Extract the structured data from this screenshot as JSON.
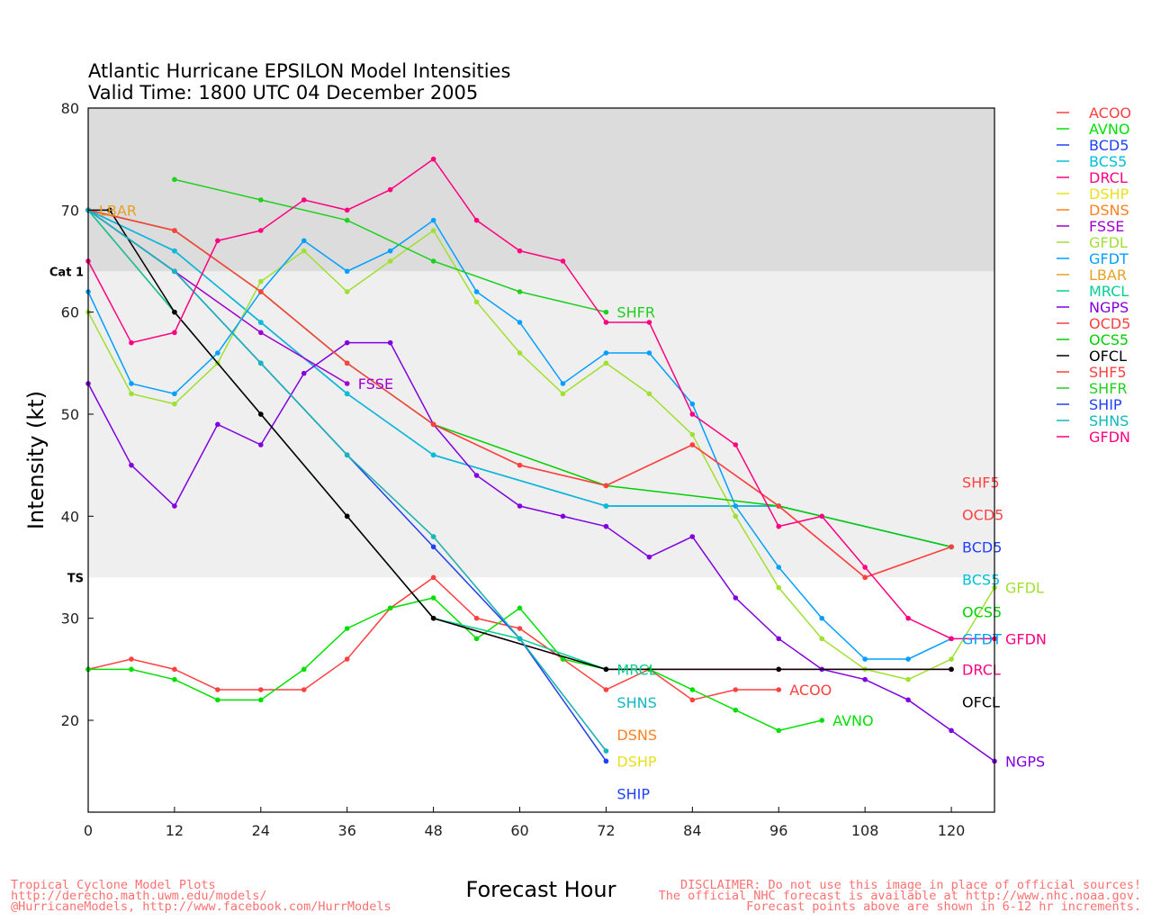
{
  "chart_data": {
    "type": "line",
    "title": "Atlantic Hurricane EPSILON Model Intensities",
    "subtitle": "Valid Time: 1800 UTC 04 December 2005",
    "xlabel": "Forecast Hour",
    "ylabel": "Intensity (kt)",
    "xlim": [
      0,
      126
    ],
    "ylim": [
      11,
      80
    ],
    "xticks": [
      0,
      12,
      24,
      36,
      48,
      60,
      72,
      84,
      96,
      108,
      120
    ],
    "yticks": [
      20,
      30,
      40,
      50,
      60,
      70,
      80
    ],
    "bands": [
      {
        "label": "Cat 1",
        "from": 64,
        "to": 80,
        "color": "#dcdcdc"
      },
      {
        "label": "TS",
        "from": 34,
        "to": 64,
        "color": "#efefef"
      }
    ],
    "legend_position": "right",
    "series": [
      {
        "name": "ACOO",
        "color": "#ff4040",
        "x": [
          0,
          6,
          12,
          18,
          24,
          30,
          36,
          42,
          48,
          54,
          60,
          66,
          72,
          78,
          84,
          90,
          96
        ],
        "y": [
          25,
          26,
          25,
          23,
          23,
          23,
          26,
          31,
          34,
          30,
          29,
          26,
          23,
          25,
          22,
          23,
          23
        ]
      },
      {
        "name": "AVNO",
        "color": "#00e000",
        "x": [
          0,
          6,
          12,
          18,
          24,
          30,
          36,
          42,
          48,
          54,
          60,
          66,
          72,
          78,
          84,
          90,
          96,
          102
        ],
        "y": [
          25,
          25,
          24,
          22,
          22,
          25,
          29,
          31,
          32,
          28,
          31,
          26,
          25,
          25,
          23,
          21,
          19,
          20
        ]
      },
      {
        "name": "BCD5",
        "color": "#2040ff",
        "x": [
          0,
          12,
          24,
          36,
          48,
          72,
          96,
          120
        ],
        "y": [
          70,
          66,
          59,
          52,
          46,
          41,
          41,
          37
        ]
      },
      {
        "name": "BCS5",
        "color": "#00c0d8",
        "x": [
          0,
          12,
          24,
          36,
          48,
          72,
          96,
          120
        ],
        "y": [
          70,
          66,
          59,
          52,
          46,
          41,
          41,
          37
        ]
      },
      {
        "name": "DRCL",
        "color": "#ff0080",
        "x": [
          0,
          12,
          24,
          36,
          48,
          72,
          96,
          120
        ],
        "y": [
          70,
          60,
          50,
          40,
          30,
          25,
          25,
          25
        ]
      },
      {
        "name": "DSHP",
        "color": "#e8e020",
        "x": [
          0,
          12,
          24,
          36,
          48,
          60,
          72
        ],
        "y": [
          70,
          64,
          55,
          46,
          37,
          28,
          16
        ]
      },
      {
        "name": "DSNS",
        "color": "#ff8020",
        "x": [
          0,
          12,
          24,
          36,
          48,
          60,
          72
        ],
        "y": [
          70,
          64,
          55,
          46,
          38,
          28,
          17
        ]
      },
      {
        "name": "FSSE",
        "color": "#a000d0",
        "x": [
          0,
          12,
          24,
          36
        ],
        "y": [
          70,
          64,
          58,
          53
        ]
      },
      {
        "name": "GFDL",
        "color": "#a0e030",
        "x": [
          0,
          6,
          12,
          18,
          24,
          30,
          36,
          42,
          48,
          54,
          60,
          66,
          72,
          78,
          84,
          90,
          96,
          102,
          108,
          114,
          120,
          126
        ],
        "y": [
          60,
          52,
          51,
          55,
          63,
          66,
          62,
          65,
          68,
          61,
          56,
          52,
          55,
          52,
          48,
          40,
          33,
          28,
          25,
          24,
          26,
          33
        ]
      },
      {
        "name": "GFDT",
        "color": "#00a0ff",
        "x": [
          0,
          6,
          12,
          18,
          24,
          30,
          36,
          42,
          48,
          54,
          60,
          66,
          72,
          78,
          84,
          90,
          96,
          102,
          108,
          114,
          120
        ],
        "y": [
          62,
          53,
          52,
          56,
          62,
          67,
          64,
          66,
          69,
          62,
          59,
          53,
          56,
          56,
          51,
          41,
          35,
          30,
          26,
          26,
          28
        ]
      },
      {
        "name": "LBAR",
        "color": "#e8a020",
        "x": [
          0
        ],
        "y": [
          70
        ]
      },
      {
        "name": "MRCL",
        "color": "#00d090",
        "x": [
          0,
          12,
          24,
          36,
          48,
          60,
          72
        ],
        "y": [
          70,
          60,
          50,
          40,
          30,
          28,
          25
        ]
      },
      {
        "name": "NGPS",
        "color": "#8000e0",
        "x": [
          0,
          6,
          12,
          18,
          24,
          30,
          36,
          42,
          48,
          54,
          60,
          66,
          72,
          78,
          84,
          90,
          96,
          102,
          108,
          114,
          120,
          126
        ],
        "y": [
          53,
          45,
          41,
          49,
          47,
          54,
          57,
          57,
          49,
          44,
          41,
          40,
          39,
          36,
          38,
          32,
          28,
          25,
          24,
          22,
          19,
          16
        ]
      },
      {
        "name": "OCD5",
        "color": "#ff4040",
        "x": [
          0,
          12,
          24,
          36,
          48,
          60,
          72,
          84,
          96,
          108,
          120
        ],
        "y": [
          70,
          68,
          62,
          55,
          49,
          45,
          43,
          47,
          41,
          34,
          37
        ]
      },
      {
        "name": "OCS5",
        "color": "#00d000",
        "x": [
          0,
          12,
          24,
          36,
          48,
          72,
          96,
          120
        ],
        "y": [
          70,
          68,
          62,
          55,
          49,
          43,
          41,
          37
        ]
      },
      {
        "name": "OFCL",
        "color": "#000000",
        "x": [
          0,
          3,
          12,
          24,
          36,
          48,
          72,
          96,
          120
        ],
        "y": [
          70,
          70,
          60,
          50,
          40,
          30,
          25,
          25,
          25
        ]
      },
      {
        "name": "SHF5",
        "color": "#ff4040",
        "x": [
          0,
          12,
          24,
          36,
          48,
          60,
          72,
          84,
          96,
          108,
          120
        ],
        "y": [
          70,
          68,
          62,
          55,
          49,
          45,
          43,
          47,
          41,
          34,
          37
        ]
      },
      {
        "name": "SHFR",
        "color": "#20d020",
        "x": [
          12,
          24,
          36,
          48,
          60,
          72
        ],
        "y": [
          73,
          71,
          69,
          65,
          62,
          60
        ]
      },
      {
        "name": "SHIP",
        "color": "#2040ff",
        "x": [
          0,
          12,
          24,
          36,
          48,
          60,
          72
        ],
        "y": [
          70,
          64,
          55,
          46,
          37,
          28,
          16
        ]
      },
      {
        "name": "SHNS",
        "color": "#10b8c0",
        "x": [
          0,
          12,
          24,
          36,
          48,
          60,
          72
        ],
        "y": [
          70,
          64,
          55,
          46,
          38,
          28,
          17
        ]
      },
      {
        "name": "GFDN",
        "color": "#ff0080",
        "x": [
          0,
          6,
          12,
          18,
          24,
          30,
          36,
          42,
          48,
          54,
          60,
          66,
          72,
          78,
          84,
          90,
          96,
          102,
          108,
          114,
          120,
          126
        ],
        "y": [
          65,
          57,
          58,
          67,
          68,
          71,
          70,
          72,
          75,
          69,
          66,
          65,
          59,
          59,
          50,
          47,
          39,
          40,
          35,
          30,
          28,
          28
        ]
      }
    ]
  },
  "footer": {
    "left": [
      "Tropical Cyclone Model Plots",
      "http://derecho.math.uwm.edu/models/",
      "@HurricaneModels, http://www.facebook.com/HurrModels"
    ],
    "right": [
      "DISCLAIMER: Do not use this image in place of official sources!",
      "The official NHC forecast is available at http://www.nhc.noaa.gov.",
      "Forecast points above are shown in 6-12 hr increments."
    ]
  }
}
